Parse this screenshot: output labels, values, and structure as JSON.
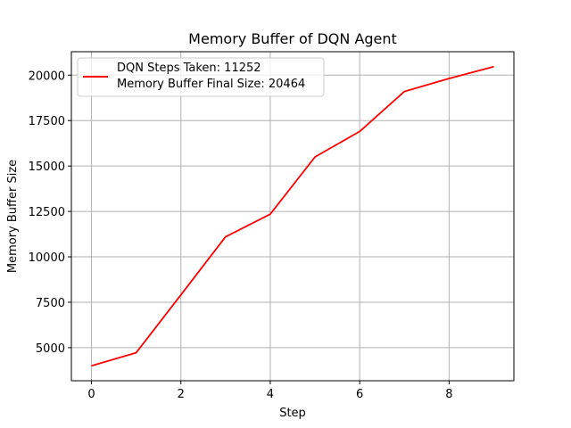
{
  "chart_data": {
    "type": "line",
    "title": "Memory Buffer of DQN Agent",
    "xlabel": "Step",
    "ylabel": "Memory Buffer Size",
    "xlim": [
      -0.45,
      9.45
    ],
    "ylim": [
      3180,
      21290
    ],
    "xticks": [
      0,
      2,
      4,
      6,
      8
    ],
    "yticks": [
      5000,
      7500,
      10000,
      12500,
      15000,
      17500,
      20000
    ],
    "grid": true,
    "legend_position": "upper left",
    "series": [
      {
        "name": "DQN Steps Taken: 11252\nMemory Buffer Final Size: 20464",
        "legend_lines": [
          "DQN Steps Taken: 11252",
          "Memory Buffer Final Size: 20464"
        ],
        "color": "#ff0000",
        "x": [
          0,
          1,
          2,
          3,
          4,
          5,
          6,
          7,
          8,
          9
        ],
        "y": [
          4000,
          4720,
          7900,
          11100,
          12350,
          15500,
          16900,
          19100,
          19820,
          20464
        ]
      }
    ]
  }
}
